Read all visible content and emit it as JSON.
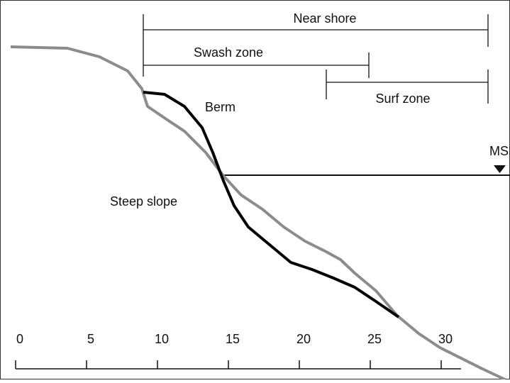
{
  "labels": {
    "near_shore": "Near shore",
    "swash_zone": "Swash zone",
    "surf_zone": "Surf zone",
    "berm": "Berm",
    "msl": "MSL",
    "steep_slope": "Steep slope"
  },
  "scale": {
    "ticks": [
      0,
      5,
      10,
      15,
      20,
      25,
      30
    ]
  }
}
